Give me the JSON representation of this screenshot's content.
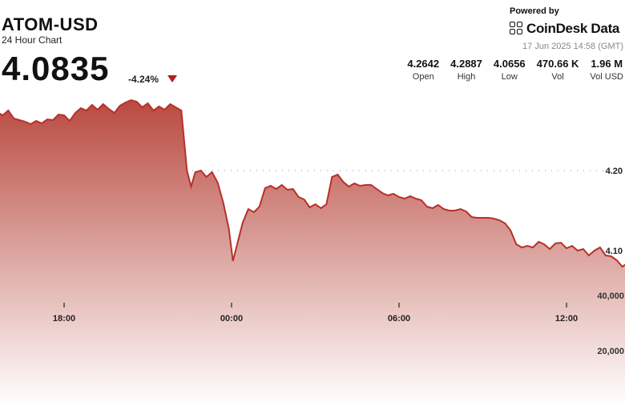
{
  "header": {
    "ticker": "ATOM-USD",
    "subtitle": "24 Hour Chart",
    "price": "4.0835",
    "change": "-4.24%"
  },
  "branding": {
    "powered_by": "Powered by",
    "name": "CoinDesk Data",
    "timestamp": "17 Jun 2025 14:58 (GMT)"
  },
  "stats": [
    {
      "value": "4.2642",
      "label": "Open"
    },
    {
      "value": "4.2887",
      "label": "High"
    },
    {
      "value": "4.0656",
      "label": "Low"
    },
    {
      "value": "470.66 K",
      "label": "Vol"
    },
    {
      "value": "1.96 M",
      "label": "Vol USD"
    }
  ],
  "colors": {
    "line": "#b8302a",
    "fill_top": "#b94a40",
    "fill_bottom": "#ffffff",
    "volume": "#555550",
    "down": "#b91c1c"
  },
  "chart_data": [
    {
      "type": "area",
      "title": "",
      "xlabel": "",
      "ylabel": "",
      "x_tick_labels": [
        "18:00",
        "00:00",
        "06:00",
        "12:00"
      ],
      "y_tick_labels": [
        "4.20",
        "4.10"
      ],
      "y_ticks": [
        4.2,
        4.1
      ],
      "x_range_hours": [
        -3.0,
        15.0
      ],
      "x_tick_hours": [
        18,
        24,
        30,
        36
      ],
      "ylim": [
        3.93,
        4.3
      ],
      "grid": "dotted horizontal",
      "series": [
        {
          "points": [
            [
              -3.0,
              4.263
            ],
            [
              -2.8,
              4.272
            ],
            [
              -2.6,
              4.267
            ],
            [
              -2.4,
              4.273
            ],
            [
              -2.2,
              4.269
            ],
            [
              -2.0,
              4.275
            ],
            [
              -1.8,
              4.265
            ],
            [
              -1.6,
              4.263
            ],
            [
              -1.4,
              4.261
            ],
            [
              -1.2,
              4.258
            ],
            [
              -1.0,
              4.262
            ],
            [
              -0.8,
              4.259
            ],
            [
              -0.6,
              4.264
            ],
            [
              -0.4,
              4.263
            ],
            [
              -0.2,
              4.27
            ],
            [
              0.0,
              4.269
            ],
            [
              0.2,
              4.262
            ],
            [
              0.4,
              4.272
            ],
            [
              0.6,
              4.278
            ],
            [
              0.8,
              4.275
            ],
            [
              1.0,
              4.282
            ],
            [
              1.2,
              4.276
            ],
            [
              1.4,
              4.283
            ],
            [
              1.6,
              4.277
            ],
            [
              1.8,
              4.272
            ],
            [
              2.0,
              4.281
            ],
            [
              2.2,
              4.285
            ],
            [
              2.4,
              4.288
            ],
            [
              2.6,
              4.286
            ],
            [
              2.8,
              4.279
            ],
            [
              3.0,
              4.284
            ],
            [
              3.2,
              4.275
            ],
            [
              3.4,
              4.28
            ],
            [
              3.6,
              4.276
            ],
            [
              3.8,
              4.283
            ],
            [
              4.0,
              4.279
            ],
            [
              4.2,
              4.275
            ],
            [
              4.4,
              4.2
            ],
            [
              4.55,
              4.18
            ],
            [
              4.7,
              4.198
            ],
            [
              4.9,
              4.2
            ],
            [
              5.1,
              4.192
            ],
            [
              5.3,
              4.198
            ],
            [
              5.5,
              4.185
            ],
            [
              5.7,
              4.16
            ],
            [
              5.9,
              4.128
            ],
            [
              6.05,
              4.087
            ],
            [
              6.2,
              4.108
            ],
            [
              6.4,
              4.135
            ],
            [
              6.6,
              4.152
            ],
            [
              6.8,
              4.148
            ],
            [
              7.0,
              4.155
            ],
            [
              7.2,
              4.178
            ],
            [
              7.4,
              4.181
            ],
            [
              7.6,
              4.177
            ],
            [
              7.8,
              4.182
            ],
            [
              8.0,
              4.176
            ],
            [
              8.2,
              4.177
            ],
            [
              8.4,
              4.167
            ],
            [
              8.6,
              4.164
            ],
            [
              8.8,
              4.154
            ],
            [
              9.0,
              4.158
            ],
            [
              9.2,
              4.153
            ],
            [
              9.4,
              4.158
            ],
            [
              9.6,
              4.192
            ],
            [
              9.8,
              4.195
            ],
            [
              10.0,
              4.186
            ],
            [
              10.2,
              4.18
            ],
            [
              10.4,
              4.184
            ],
            [
              10.6,
              4.181
            ],
            [
              10.8,
              4.182
            ],
            [
              11.0,
              4.182
            ],
            [
              11.2,
              4.177
            ],
            [
              11.4,
              4.172
            ],
            [
              11.6,
              4.169
            ],
            [
              11.8,
              4.171
            ],
            [
              12.0,
              4.167
            ],
            [
              12.2,
              4.165
            ],
            [
              12.4,
              4.168
            ],
            [
              12.6,
              4.165
            ],
            [
              12.8,
              4.163
            ],
            [
              13.0,
              4.155
            ],
            [
              13.2,
              4.153
            ],
            [
              13.4,
              4.157
            ],
            [
              13.6,
              4.152
            ],
            [
              13.8,
              4.15
            ],
            [
              14.0,
              4.15
            ],
            [
              14.2,
              4.152
            ],
            [
              14.4,
              4.149
            ],
            [
              14.6,
              4.142
            ],
            [
              14.8,
              4.141
            ],
            [
              15.0,
              4.141
            ],
            [
              15.2,
              4.141
            ],
            [
              15.4,
              4.14
            ],
            [
              15.6,
              4.138
            ],
            [
              15.8,
              4.134
            ],
            [
              16.0,
              4.125
            ],
            [
              16.2,
              4.108
            ],
            [
              16.4,
              4.104
            ],
            [
              16.6,
              4.106
            ],
            [
              16.8,
              4.104
            ],
            [
              17.0,
              4.111
            ],
            [
              17.2,
              4.108
            ],
            [
              17.4,
              4.102
            ],
            [
              17.6,
              4.109
            ],
            [
              17.8,
              4.11
            ],
            [
              18.0,
              4.103
            ],
            [
              18.2,
              4.106
            ],
            [
              18.4,
              4.1
            ],
            [
              18.6,
              4.102
            ],
            [
              18.8,
              4.094
            ],
            [
              19.0,
              4.1
            ],
            [
              19.2,
              4.104
            ],
            [
              19.4,
              4.094
            ],
            [
              19.6,
              4.093
            ],
            [
              19.8,
              4.088
            ],
            [
              20.0,
              4.08
            ],
            [
              20.2,
              4.085
            ],
            [
              20.4,
              4.076
            ],
            [
              20.6,
              4.079
            ],
            [
              20.8,
              4.084
            ],
            [
              21.0,
              4.075
            ],
            [
              21.2,
              4.083
            ],
            [
              21.4,
              4.087
            ],
            [
              21.6,
              4.082
            ],
            [
              21.8,
              4.083
            ],
            [
              22.0,
              4.085
            ],
            [
              22.2,
              4.095
            ],
            [
              22.4,
              4.098
            ],
            [
              22.6,
              4.093
            ],
            [
              22.8,
              4.103
            ],
            [
              23.0,
              4.11
            ],
            [
              23.2,
              4.102
            ]
          ]
        }
      ]
    },
    {
      "type": "bar",
      "title": "",
      "y_tick_labels": [
        "40,000",
        "20,000"
      ],
      "y_ticks": [
        40000,
        20000
      ],
      "ylim": [
        0,
        63000
      ],
      "series": [
        {
          "values": [
            2000,
            4000,
            1600,
            2100,
            2700,
            1000,
            1500,
            600,
            800,
            1800,
            800,
            600,
            900,
            900,
            2400,
            2100,
            700,
            3700,
            1100,
            1700,
            900,
            1600,
            1800,
            500,
            2000,
            1500,
            1500,
            3600,
            2300,
            16300,
            2000,
            700,
            1100,
            1100,
            2000,
            1000,
            1000,
            1800,
            1300,
            2100,
            4200,
            2200,
            2400,
            800,
            2100,
            1300,
            4200,
            16600,
            10800,
            62000,
            5000,
            4100,
            2400,
            800,
            1500,
            2800,
            5300,
            11200,
            5000,
            4900,
            3000,
            2500,
            1300,
            1700,
            500,
            900,
            1300,
            1500,
            1300,
            2300,
            9000,
            1200,
            1300,
            1500,
            2000,
            1700,
            2000,
            1500,
            1300,
            1300,
            1000,
            1500,
            1700,
            1600,
            1600,
            1200,
            800,
            1000,
            1500,
            800,
            1100,
            1300,
            1000,
            1400,
            4700,
            2000,
            1000,
            1000,
            1000,
            1600,
            1000,
            1000,
            1000,
            500,
            1200,
            1000,
            2000,
            1000,
            1700,
            3600,
            1700,
            3000,
            1000,
            1200,
            7600,
            3700,
            1400,
            1500,
            5000,
            1800,
            1500,
            1000,
            1000,
            1200,
            1000,
            1500,
            1000,
            1400,
            1400,
            1000,
            1800,
            1500,
            1500,
            12400,
            1500,
            1800,
            3800,
            1300,
            1100,
            15800,
            4200,
            3300,
            1700,
            2100,
            1200,
            600,
            1900,
            2000,
            1400,
            1000,
            1100,
            1500,
            2500,
            1100,
            1500,
            2100,
            1000,
            1200,
            2000,
            600
          ]
        }
      ]
    }
  ]
}
